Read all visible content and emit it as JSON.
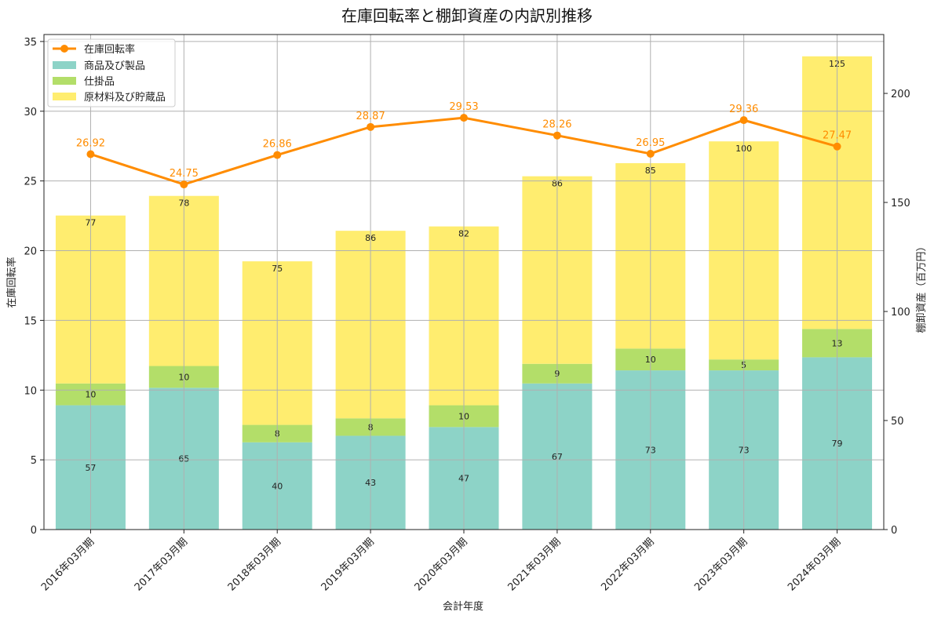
{
  "chart_data": {
    "type": "bar",
    "title": "在庫回転率と棚卸資産の内訳別推移",
    "xlabel": "会計年度",
    "ylabel_left": "在庫回転率",
    "ylabel_right": "棚卸資産（百万円）",
    "categories": [
      "2016年03月期",
      "2017年03月期",
      "2018年03月期",
      "2019年03月期",
      "2020年03月期",
      "2021年03月期",
      "2022年03月期",
      "2023年03月期",
      "2024年03月期"
    ],
    "stacked_series": [
      {
        "name": "商品及び製品",
        "color": "#8dd3c7",
        "values": [
          57,
          65,
          40,
          43,
          47,
          67,
          73,
          73,
          79
        ]
      },
      {
        "name": "仕掛品",
        "color": "#b3de69",
        "values": [
          10,
          10,
          8,
          8,
          10,
          9,
          10,
          5,
          13
        ]
      },
      {
        "name": "原材料及び貯蔵品",
        "color": "#ffed6f",
        "values": [
          77,
          78,
          75,
          86,
          82,
          86,
          85,
          100,
          125
        ]
      }
    ],
    "line_series": {
      "name": "在庫回転率",
      "color": "#ff8c00",
      "values": [
        26.92,
        24.75,
        26.86,
        28.87,
        29.53,
        28.26,
        26.95,
        29.36,
        27.47
      ]
    },
    "ylim_left": [
      0,
      35.5
    ],
    "yticks_left": [
      0,
      5,
      10,
      15,
      20,
      25,
      30,
      35
    ],
    "ylim_right": [
      0,
      227
    ],
    "yticks_right": [
      0,
      50,
      100,
      150,
      200
    ],
    "grid": true,
    "legend_position": "top-left"
  }
}
